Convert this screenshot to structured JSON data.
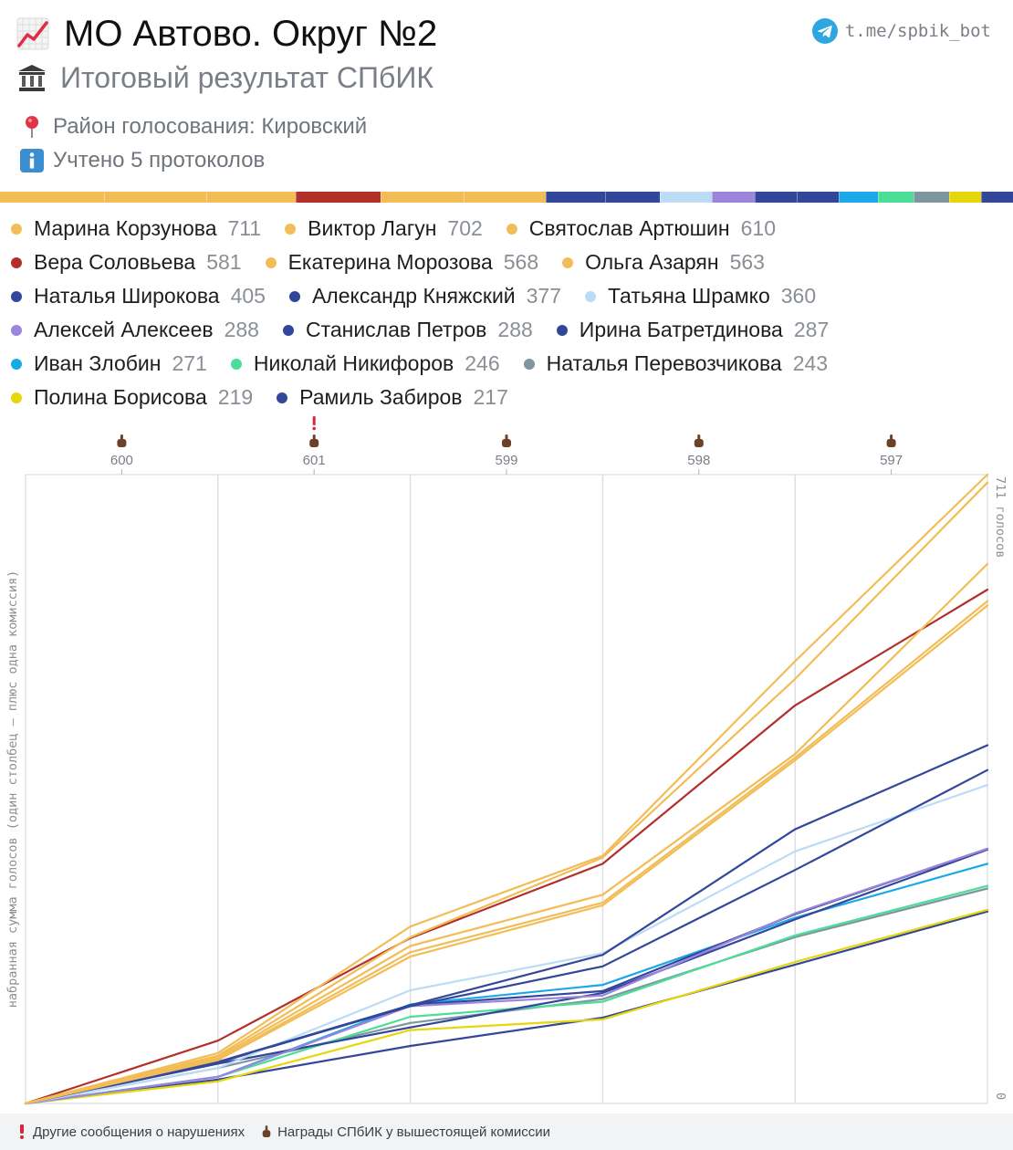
{
  "header": {
    "title": "МО Автово. Округ №2",
    "title_icon": "chart-increasing-icon",
    "subtitle": "Итоговый результат СПбИК",
    "subtitle_icon": "classical-building-icon",
    "district_label": "Район голосования: Кировский",
    "district_icon": "round-pushpin-icon",
    "protocols_label": "Учтено 5 протоколов",
    "protocols_icon": "information-icon"
  },
  "telegram": {
    "label": "t.me/spbik_bot",
    "icon": "telegram-icon"
  },
  "colors": {
    "gold": "#f2bd56",
    "red": "#b3302a",
    "navy": "#33479a",
    "light_blue": "#bcdcf5",
    "purple": "#9b86dc",
    "cyan": "#1aa8e8",
    "green": "#4ade96",
    "gray": "#7f96a1",
    "yellow": "#e6d60c"
  },
  "legend": [
    {
      "name": "Марина Корзунова",
      "value": "711",
      "color": "#f2bd56"
    },
    {
      "name": "Виктор Лагун",
      "value": "702",
      "color": "#f2bd56"
    },
    {
      "name": "Святослав Артюшин",
      "value": "610",
      "color": "#f2bd56"
    },
    {
      "name": "Вера Соловьева",
      "value": "581",
      "color": "#b3302a"
    },
    {
      "name": "Екатерина Морозова",
      "value": "568",
      "color": "#f2bd56"
    },
    {
      "name": "Ольга Азарян",
      "value": "563",
      "color": "#f2bd56"
    },
    {
      "name": "Наталья Широкова",
      "value": "405",
      "color": "#33479a"
    },
    {
      "name": "Александр Княжский",
      "value": "377",
      "color": "#33479a"
    },
    {
      "name": "Татьяна Шрамко",
      "value": "360",
      "color": "#bcdcf5"
    },
    {
      "name": "Алексей Алексеев",
      "value": "288",
      "color": "#9b86dc"
    },
    {
      "name": "Станислав Петров",
      "value": "288",
      "color": "#33479a"
    },
    {
      "name": "Ирина Батретдинова",
      "value": "287",
      "color": "#33479a"
    },
    {
      "name": "Иван Злобин",
      "value": "271",
      "color": "#1aa8e8"
    },
    {
      "name": "Николай Никифоров",
      "value": "246",
      "color": "#4ade96"
    },
    {
      "name": "Наталья Перевозчикова",
      "value": "243",
      "color": "#7f96a1"
    },
    {
      "name": "Полина Борисова",
      "value": "219",
      "color": "#e6d60c"
    },
    {
      "name": "Рамиль Забиров",
      "value": "217",
      "color": "#33479a"
    }
  ],
  "chart_data": {
    "type": "line",
    "x": [
      "",
      "600",
      "601",
      "599",
      "598",
      "597"
    ],
    "ylabel": "набранная сумма голосов (один столбец – плюс одна комиссия)",
    "y_top_label": "711 голосов",
    "y_bottom_label": "0",
    "ylim": [
      0,
      711
    ],
    "grid": true,
    "station_markers": [
      {
        "station": "600",
        "award": true,
        "violation": false
      },
      {
        "station": "601",
        "award": true,
        "violation": true
      },
      {
        "station": "599",
        "award": true,
        "violation": false
      },
      {
        "station": "598",
        "award": true,
        "violation": false
      },
      {
        "station": "597",
        "award": true,
        "violation": false
      }
    ],
    "series": [
      {
        "name": "Марина Корзунова",
        "color": "#f2bd56",
        "values": [
          0,
          57,
          200,
          280,
          500,
          711
        ]
      },
      {
        "name": "Виктор Лагун",
        "color": "#f2bd56",
        "values": [
          0,
          54,
          188,
          278,
          480,
          702
        ]
      },
      {
        "name": "Святослав Артюшин",
        "color": "#f2bd56",
        "values": [
          0,
          52,
          178,
          236,
          395,
          610
        ]
      },
      {
        "name": "Вера Соловьева",
        "color": "#b3302a",
        "values": [
          0,
          71,
          187,
          271,
          450,
          581
        ]
      },
      {
        "name": "Екатерина Морозова",
        "color": "#f2bd56",
        "values": [
          0,
          50,
          171,
          227,
          391,
          568
        ]
      },
      {
        "name": "Ольга Азарян",
        "color": "#f2bd56",
        "values": [
          0,
          49,
          166,
          224,
          388,
          563
        ]
      },
      {
        "name": "Наталья Широкова",
        "color": "#33479a",
        "values": [
          0,
          47,
          111,
          168,
          310,
          405
        ]
      },
      {
        "name": "Александр Княжский",
        "color": "#33479a",
        "values": [
          0,
          47,
          110,
          155,
          264,
          377
        ]
      },
      {
        "name": "Татьяна Шрамко",
        "color": "#bcdcf5",
        "values": [
          0,
          40,
          128,
          170,
          285,
          360
        ]
      },
      {
        "name": "Алексей Алексеев",
        "color": "#9b86dc",
        "values": [
          0,
          30,
          110,
          122,
          215,
          288
        ]
      },
      {
        "name": "Станислав Петров",
        "color": "#33479a",
        "values": [
          0,
          46,
          111,
          127,
          214,
          288
        ]
      },
      {
        "name": "Ирина Батретдинова",
        "color": "#33479a",
        "values": [
          0,
          45,
          86,
          125,
          208,
          287
        ]
      },
      {
        "name": "Иван Злобин",
        "color": "#1aa8e8",
        "values": [
          0,
          30,
          112,
          134,
          210,
          271
        ]
      },
      {
        "name": "Николай Никифоров",
        "color": "#4ade96",
        "values": [
          0,
          30,
          98,
          115,
          190,
          246
        ]
      },
      {
        "name": "Наталья Перевозчикова",
        "color": "#7f96a1",
        "values": [
          0,
          40,
          91,
          118,
          188,
          243
        ]
      },
      {
        "name": "Полина Борисова",
        "color": "#e6d60c",
        "values": [
          0,
          25,
          83,
          95,
          160,
          219
        ]
      },
      {
        "name": "Рамиль Забиров",
        "color": "#33479a",
        "values": [
          0,
          27,
          65,
          97,
          157,
          217
        ]
      }
    ]
  },
  "footer": {
    "violations_label": "Другие сообщения о нарушениях",
    "violations_icon": "exclamation-icon",
    "awards_label": "Награды СПбИК у вышестоящей комиссии",
    "awards_icon": "pointing-finger-icon"
  }
}
